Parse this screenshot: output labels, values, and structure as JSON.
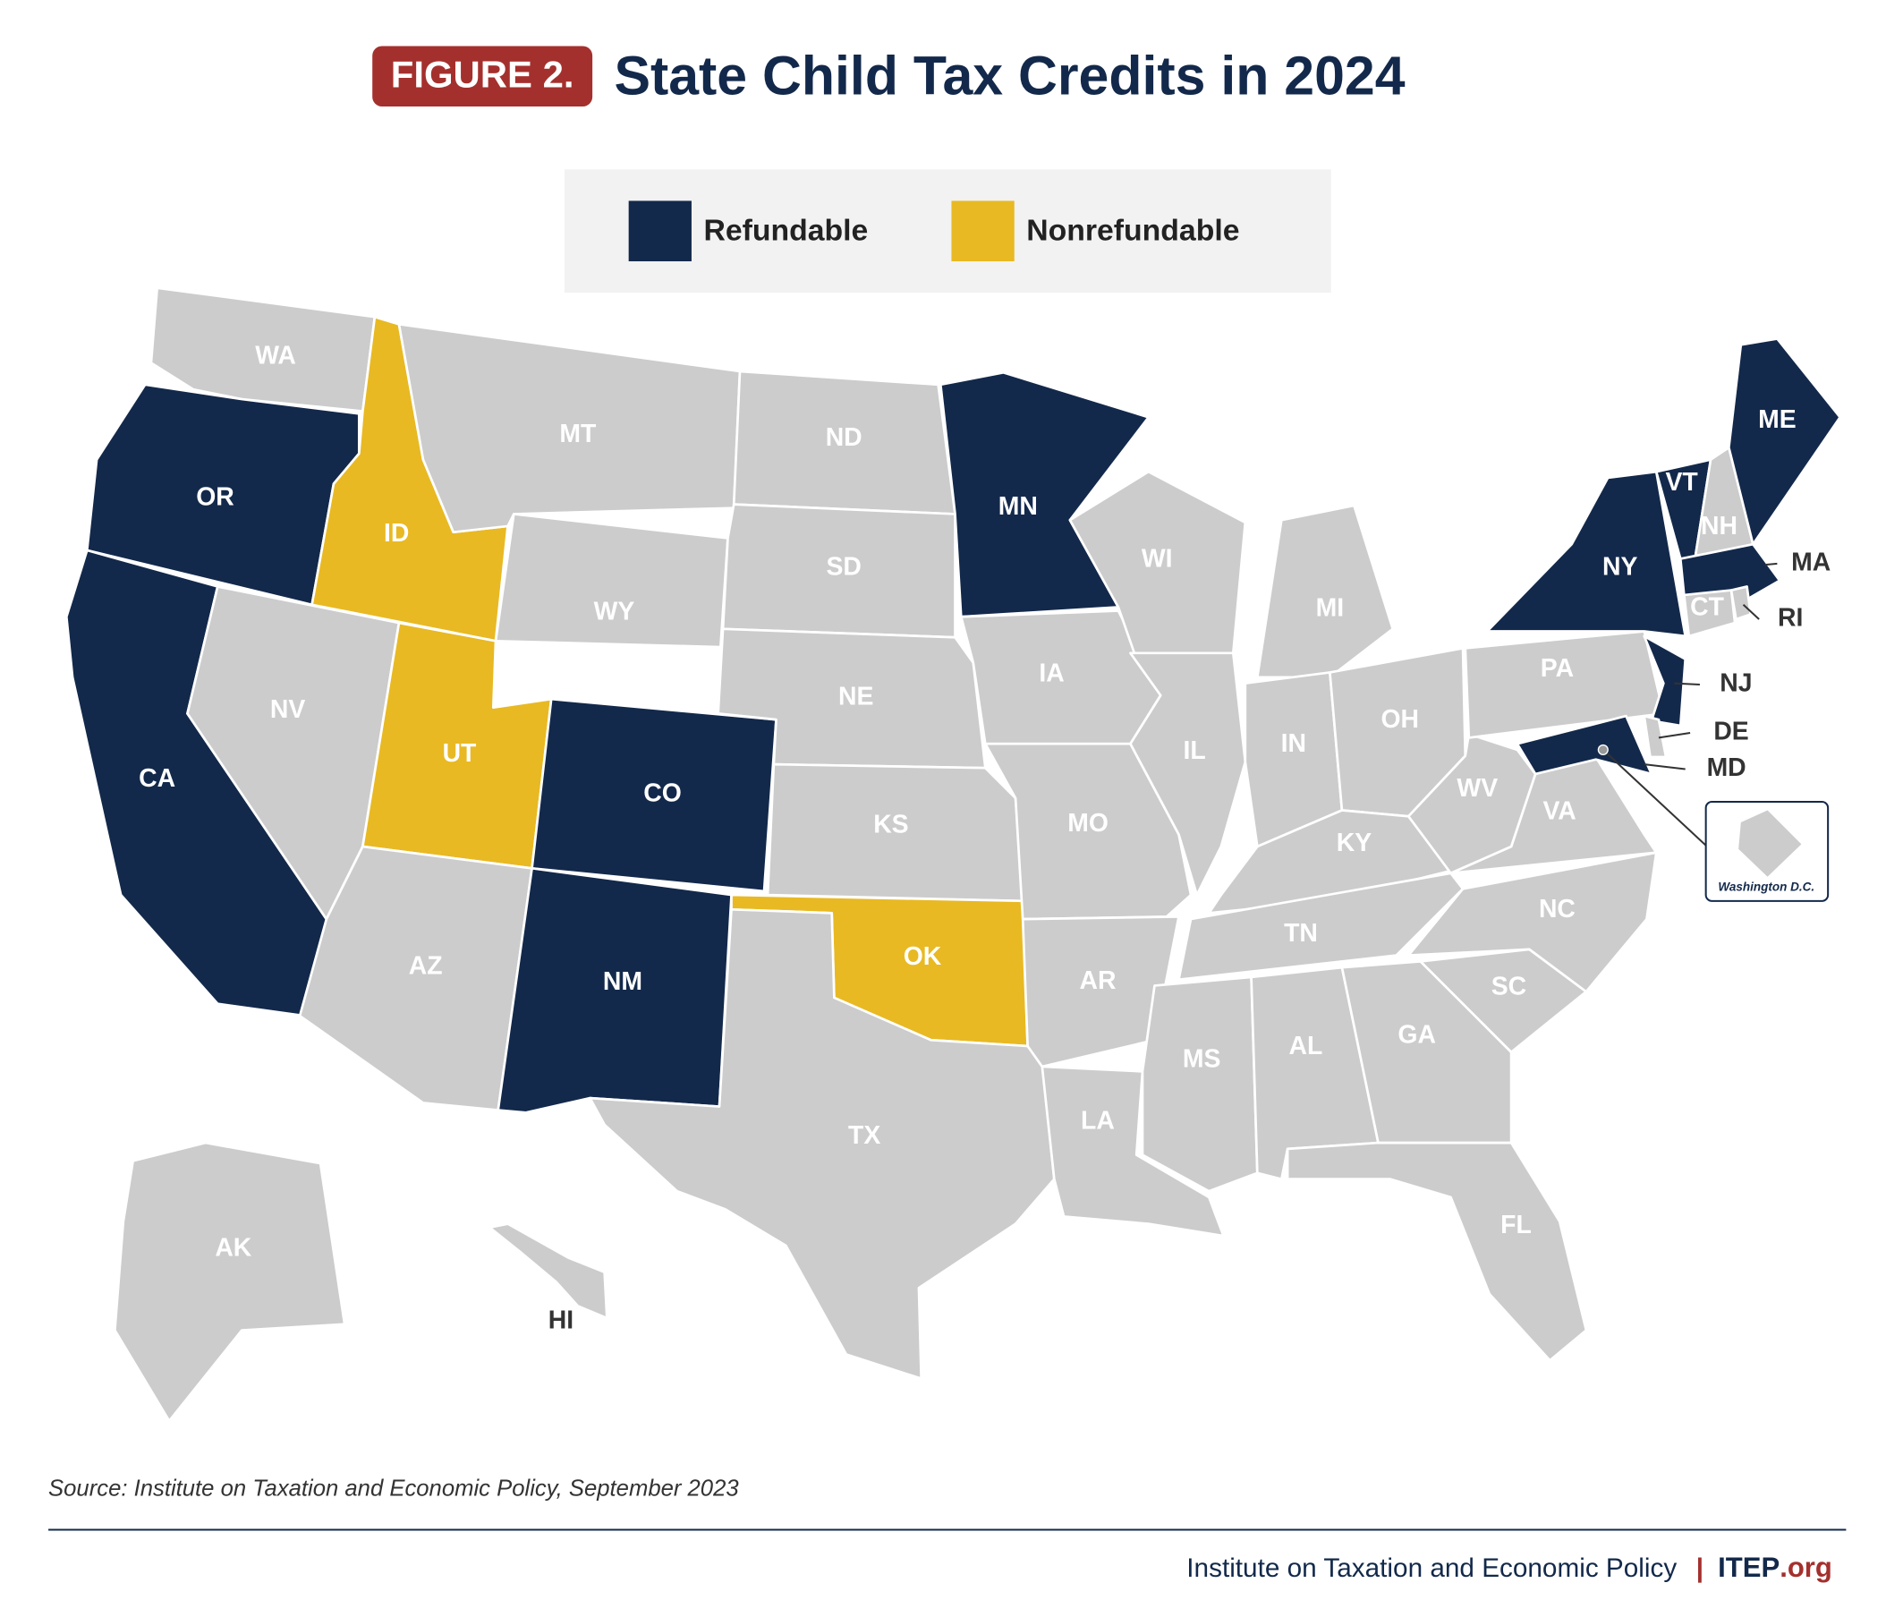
{
  "figure_label": "FIGURE 2.",
  "title": "State Child Tax Credits in 2024",
  "legend": [
    {
      "label": "Refundable",
      "color": "#13294b"
    },
    {
      "label": "Nonrefundable",
      "color": "#e8b923"
    }
  ],
  "base_color": "#cccccc",
  "states": [
    {
      "abbr": "WA",
      "credit": null
    },
    {
      "abbr": "OR",
      "credit": 0
    },
    {
      "abbr": "CA",
      "credit": 0
    },
    {
      "abbr": "ID",
      "credit": 1
    },
    {
      "abbr": "NV",
      "credit": null
    },
    {
      "abbr": "MT",
      "credit": null
    },
    {
      "abbr": "WY",
      "credit": null
    },
    {
      "abbr": "UT",
      "credit": 1
    },
    {
      "abbr": "AZ",
      "credit": null
    },
    {
      "abbr": "CO",
      "credit": 0
    },
    {
      "abbr": "NM",
      "credit": 0
    },
    {
      "abbr": "ND",
      "credit": null
    },
    {
      "abbr": "SD",
      "credit": null
    },
    {
      "abbr": "NE",
      "credit": null
    },
    {
      "abbr": "KS",
      "credit": null
    },
    {
      "abbr": "OK",
      "credit": 1
    },
    {
      "abbr": "TX",
      "credit": null
    },
    {
      "abbr": "MN",
      "credit": 0
    },
    {
      "abbr": "IA",
      "credit": null
    },
    {
      "abbr": "MO",
      "credit": null
    },
    {
      "abbr": "AR",
      "credit": null
    },
    {
      "abbr": "LA",
      "credit": null
    },
    {
      "abbr": "WI",
      "credit": null
    },
    {
      "abbr": "IL",
      "credit": null
    },
    {
      "abbr": "MI",
      "credit": null
    },
    {
      "abbr": "IN",
      "credit": null
    },
    {
      "abbr": "OH",
      "credit": null
    },
    {
      "abbr": "KY",
      "credit": null
    },
    {
      "abbr": "TN",
      "credit": null
    },
    {
      "abbr": "MS",
      "credit": null
    },
    {
      "abbr": "AL",
      "credit": null
    },
    {
      "abbr": "GA",
      "credit": null
    },
    {
      "abbr": "FL",
      "credit": null
    },
    {
      "abbr": "SC",
      "credit": null
    },
    {
      "abbr": "NC",
      "credit": null
    },
    {
      "abbr": "VA",
      "credit": null
    },
    {
      "abbr": "WV",
      "credit": null
    },
    {
      "abbr": "PA",
      "credit": null
    },
    {
      "abbr": "NY",
      "credit": 0
    },
    {
      "abbr": "VT",
      "credit": 0
    },
    {
      "abbr": "NH",
      "credit": null
    },
    {
      "abbr": "ME",
      "credit": 0
    },
    {
      "abbr": "MA",
      "credit": 0
    },
    {
      "abbr": "CT",
      "credit": null
    },
    {
      "abbr": "RI",
      "credit": null
    },
    {
      "abbr": "NJ",
      "credit": 0
    },
    {
      "abbr": "DE",
      "credit": null
    },
    {
      "abbr": "MD",
      "credit": 0
    },
    {
      "abbr": "AK",
      "credit": null
    },
    {
      "abbr": "HI",
      "credit": null
    }
  ],
  "dc_inset": "Washington D.C.",
  "source": "Source: Institute on Taxation and Economic Policy, September 2023",
  "footer": {
    "org": "Institute on Taxation and Economic Policy",
    "separator": "|",
    "brand": "ITEP",
    "domain": ".org"
  }
}
